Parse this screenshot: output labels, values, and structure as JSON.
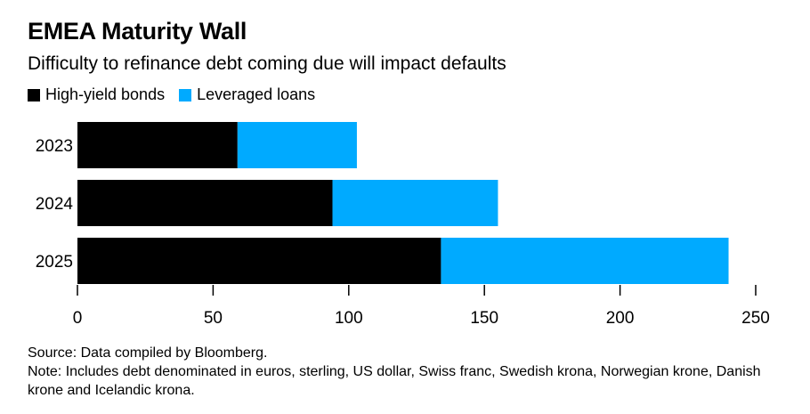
{
  "chart_data": {
    "type": "bar",
    "orientation": "horizontal",
    "stacked": true,
    "title": "EMEA Maturity Wall",
    "subtitle": "Difficulty to refinance debt coming due will impact defaults",
    "categories": [
      "2023",
      "2024",
      "2025"
    ],
    "series": [
      {
        "name": "High-yield bonds",
        "color": "#000000",
        "values": [
          59,
          94,
          134
        ]
      },
      {
        "name": "Leveraged loans",
        "color": "#00aaff",
        "values": [
          44,
          61,
          106
        ]
      }
    ],
    "xlim": [
      0,
      250
    ],
    "xticks": [
      0,
      50,
      100,
      150,
      200,
      250
    ],
    "legend_position": "top-left",
    "grid": false
  },
  "footer": {
    "source": "Source: Data compiled by Bloomberg.",
    "note": "Note: Includes debt denominated in euros, sterling, US dollar, Swiss franc, Swedish krona, Norwegian krone, Danish krone and Icelandic krona."
  }
}
